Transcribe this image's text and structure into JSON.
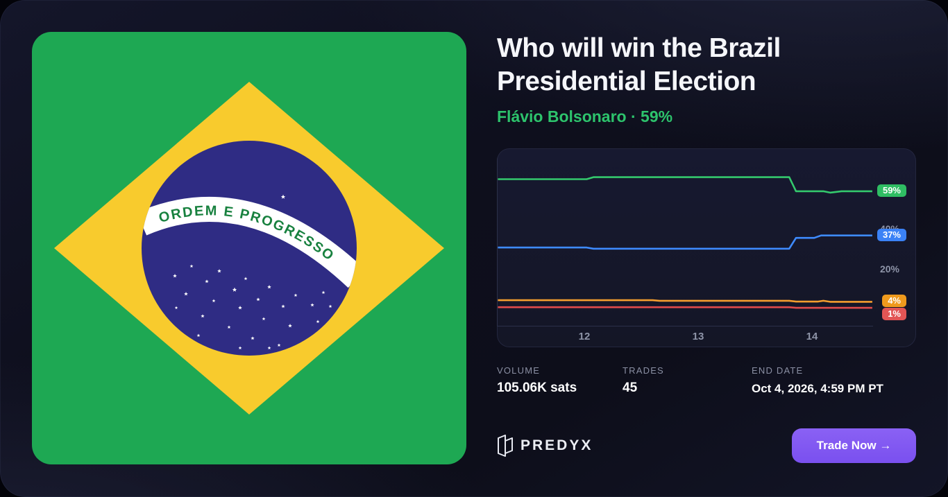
{
  "market": {
    "title": "Who will win the Brazil Presidential Election",
    "leader": "Flávio Bolsonaro · 59%",
    "leader_color": "#2dc36c"
  },
  "flag": {
    "motto": "ORDEM E PROGRESSO",
    "colors": {
      "green": "#1EA853",
      "yellow": "#F8CB2D",
      "blue": "#2F2C84",
      "band": "#FFFFFF",
      "motto_text": "#18813F"
    }
  },
  "chart_data": {
    "type": "line",
    "grid": false,
    "legend": "end-badges-right",
    "x_ticks": [
      {
        "label": "12",
        "value": 12
      },
      {
        "label": "13",
        "value": 13
      },
      {
        "label": "14",
        "value": 14
      }
    ],
    "y_ticks": [
      {
        "label": "40%",
        "value": 40
      },
      {
        "label": "20%",
        "value": 20
      }
    ],
    "x_range": [
      11.24,
      14.53
    ],
    "y_range_visible": [
      0,
      80
    ],
    "series": [
      {
        "name": "Flávio Bolsonaro",
        "end_label": "59%",
        "color": "#34c96d",
        "badge_color": "#2fbd63",
        "points": [
          [
            11.24,
            65
          ],
          [
            12.02,
            65
          ],
          [
            12.08,
            66
          ],
          [
            13.8,
            66
          ],
          [
            13.86,
            59
          ],
          [
            14.1,
            59
          ],
          [
            14.16,
            58.3
          ],
          [
            14.26,
            59
          ],
          [
            14.53,
            59
          ]
        ]
      },
      {
        "end_label": "37%",
        "color": "#3e8bff",
        "badge_color": "#3b82f6",
        "points": [
          [
            11.24,
            31
          ],
          [
            12.02,
            31
          ],
          [
            12.08,
            30.4
          ],
          [
            13.8,
            30.4
          ],
          [
            13.86,
            35.8
          ],
          [
            14.02,
            35.8
          ],
          [
            14.08,
            37
          ],
          [
            14.53,
            37
          ]
        ]
      },
      {
        "end_label": "4%",
        "color": "#f59e2e",
        "badge_color": "#ef9a1d",
        "points": [
          [
            11.24,
            4.8
          ],
          [
            12.6,
            4.8
          ],
          [
            12.66,
            4.5
          ],
          [
            13.8,
            4.5
          ],
          [
            13.86,
            4.1
          ],
          [
            14.05,
            4.1
          ],
          [
            14.1,
            4.5
          ],
          [
            14.16,
            4.0
          ],
          [
            14.53,
            4.0
          ]
        ]
      },
      {
        "end_label": "1%",
        "color": "#e14b4b",
        "badge_color": "#e25555",
        "points": [
          [
            11.24,
            1.3
          ],
          [
            13.8,
            1.3
          ],
          [
            13.86,
            1.0
          ],
          [
            14.53,
            1.0
          ]
        ]
      }
    ]
  },
  "stats": [
    {
      "label": "VOLUME",
      "value": "105.06K sats"
    },
    {
      "label": "TRADES",
      "value": "45"
    },
    {
      "label": "END DATE",
      "value": "Oct 4, 2026, 4:59 PM PT"
    }
  ],
  "footer": {
    "brand": "PREDYX",
    "cta_label": "Trade Now →",
    "cta_color": "#7e57f2"
  }
}
